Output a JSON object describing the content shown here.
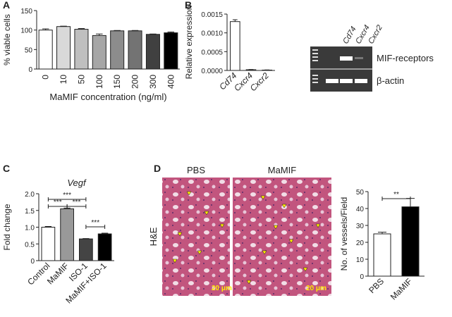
{
  "chart_data": [
    {
      "type": "bar",
      "label": "A",
      "y_label": "% viable cells",
      "x_label": "MaMIF concentration (ng/ml)",
      "categories": [
        "0",
        "10",
        "50",
        "100",
        "150",
        "200",
        "300",
        "400"
      ],
      "values": [
        100,
        109,
        102,
        86,
        98,
        98,
        89,
        93
      ],
      "errors": [
        3,
        1,
        2,
        4,
        1,
        1,
        1,
        2
      ],
      "colors": [
        "#ffffff",
        "#d9d9d9",
        "#bfbfbf",
        "#a6a6a6",
        "#8c8c8c",
        "#737373",
        "#404040",
        "#000000"
      ],
      "ylim": [
        0,
        150
      ],
      "yticks": [
        0,
        50,
        100,
        150
      ]
    },
    {
      "type": "bar",
      "label": "B",
      "y_label": "Relative expression",
      "categories": [
        "Cd74",
        "Cxcr4",
        "Cxcr2"
      ],
      "values": [
        0.0013,
        2e-05,
        1e-05
      ],
      "errors": [
        5e-05,
        5e-06,
        3e-06
      ],
      "colors": [
        "#ffffff",
        "#ffffff",
        "#ffffff"
      ],
      "ylim": [
        0,
        0.0015
      ],
      "yticks": [
        {
          "value": 0,
          "label": "0.0000"
        },
        {
          "value": 0.0005,
          "label": "0.0005"
        },
        {
          "value": 0.001,
          "label": "0.0010"
        },
        {
          "value": 0.0015,
          "label": "0.0015"
        }
      ]
    },
    {
      "type": "bar",
      "label": "C",
      "title": "Vegf",
      "y_label": "Fold change",
      "categories": [
        "Control",
        "MaMIF",
        "ISO-1",
        "MaMIF+ISO-1"
      ],
      "values": [
        1.0,
        1.55,
        0.65,
        0.8
      ],
      "errors": [
        0.02,
        0.02,
        0.01,
        0.02
      ],
      "colors": [
        "#ffffff",
        "#999999",
        "#444444",
        "#000000"
      ],
      "ylim": [
        0,
        2
      ],
      "yticks": [
        0,
        0.5,
        {
          "value": 1,
          "label": "1.0"
        },
        1.5,
        {
          "value": 2,
          "label": "2.0"
        }
      ],
      "annotations": [
        {
          "text": "***",
          "between": [
            "Control",
            "ISO-1"
          ]
        },
        {
          "text": "***",
          "between": [
            "Control",
            "MaMIF"
          ]
        },
        {
          "text": "***",
          "between": [
            "MaMIF",
            "ISO-1"
          ]
        },
        {
          "text": "***",
          "between": [
            "ISO-1",
            "MaMIF+ISO-1"
          ]
        }
      ]
    },
    {
      "type": "bar",
      "label": "D",
      "y_label": "No. of vessels/Field",
      "categories": [
        "PBS",
        "MaMIF"
      ],
      "values": [
        25,
        41
      ],
      "errors": [
        1,
        5
      ],
      "colors": [
        "#ffffff",
        "#000000"
      ],
      "ylim": [
        0,
        50
      ],
      "yticks": [
        0,
        10,
        20,
        30,
        40,
        50
      ],
      "annotations": [
        {
          "text": "**",
          "between": [
            "PBS",
            "MaMIF"
          ]
        }
      ]
    }
  ],
  "gel": {
    "lanes": [
      "Cd74",
      "Cxcr4",
      "Cxcr2"
    ],
    "bands": [
      "MIF-receptors",
      "β-actin"
    ]
  },
  "histology": {
    "stain": "H&E",
    "columns": [
      "PBS",
      "MaMIF"
    ],
    "scale_bar": "20 μm"
  }
}
